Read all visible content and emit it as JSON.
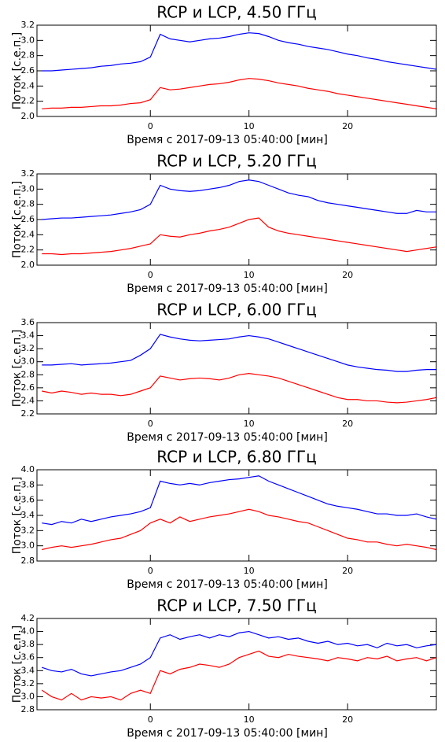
{
  "chart_data": [
    {
      "type": "line",
      "title": "RCP и LCP, 4.50 ГГц",
      "xlabel": "Время с 2017-09-13 05:40:00 [мин]",
      "ylabel": "Поток [с.е.п.]",
      "x": [
        -11,
        -10,
        -9,
        -8,
        -7,
        -6,
        -5,
        -4,
        -3,
        -2,
        -1,
        0,
        1,
        2,
        3,
        4,
        5,
        6,
        7,
        8,
        9,
        10,
        11,
        12,
        13,
        14,
        15,
        16,
        17,
        18,
        19,
        20,
        21,
        22,
        23,
        24,
        25,
        26,
        27,
        28,
        29
      ],
      "xlim": [
        -11.5,
        29
      ],
      "xticks": [
        0,
        10,
        20
      ],
      "ylim": [
        2.0,
        3.2
      ],
      "yticks": [
        {
          "value": 2.0,
          "label": "2.0"
        },
        2.2,
        2.4,
        2.6,
        2.8,
        {
          "value": 3.0,
          "label": "3.0"
        },
        3.2
      ],
      "series": [
        {
          "color": "#0000ff",
          "values": [
            2.6,
            2.6,
            2.61,
            2.62,
            2.63,
            2.64,
            2.66,
            2.67,
            2.69,
            2.7,
            2.72,
            2.78,
            3.08,
            3.02,
            3.0,
            2.98,
            3.0,
            3.02,
            3.03,
            3.05,
            3.08,
            3.1,
            3.09,
            3.05,
            3.0,
            2.97,
            2.95,
            2.92,
            2.9,
            2.88,
            2.85,
            2.82,
            2.8,
            2.77,
            2.75,
            2.72,
            2.7,
            2.68,
            2.66,
            2.64,
            2.62
          ]
        },
        {
          "color": "#ff0000",
          "values": [
            2.1,
            2.11,
            2.11,
            2.12,
            2.12,
            2.13,
            2.14,
            2.14,
            2.15,
            2.17,
            2.18,
            2.22,
            2.38,
            2.35,
            2.36,
            2.38,
            2.4,
            2.42,
            2.43,
            2.45,
            2.48,
            2.5,
            2.49,
            2.47,
            2.44,
            2.42,
            2.4,
            2.37,
            2.35,
            2.33,
            2.3,
            2.28,
            2.26,
            2.24,
            2.22,
            2.2,
            2.18,
            2.16,
            2.14,
            2.12,
            2.1
          ]
        }
      ]
    },
    {
      "type": "line",
      "title": "RCP и LCP, 5.20 ГГц",
      "xlabel": "Время с 2017-09-13 05:40:00 [мин]",
      "ylabel": "Поток [с.е.п.]",
      "x": [
        -11,
        -10,
        -9,
        -8,
        -7,
        -6,
        -5,
        -4,
        -3,
        -2,
        -1,
        0,
        1,
        2,
        3,
        4,
        5,
        6,
        7,
        8,
        9,
        10,
        11,
        12,
        13,
        14,
        15,
        16,
        17,
        18,
        19,
        20,
        21,
        22,
        23,
        24,
        25,
        26,
        27,
        28,
        29
      ],
      "xlim": [
        -11.5,
        29
      ],
      "xticks": [
        0,
        10,
        20
      ],
      "ylim": [
        2.0,
        3.2
      ],
      "yticks": [
        {
          "value": 2.0,
          "label": "2.0"
        },
        2.2,
        2.4,
        2.6,
        2.8,
        {
          "value": 3.0,
          "label": "3.0"
        },
        3.2
      ],
      "series": [
        {
          "color": "#0000ff",
          "values": [
            2.6,
            2.61,
            2.62,
            2.62,
            2.63,
            2.64,
            2.65,
            2.66,
            2.68,
            2.7,
            2.73,
            2.8,
            3.05,
            3.0,
            2.98,
            2.97,
            2.98,
            3.0,
            3.02,
            3.05,
            3.1,
            3.12,
            3.1,
            3.05,
            3.0,
            2.95,
            2.92,
            2.9,
            2.85,
            2.82,
            2.8,
            2.78,
            2.76,
            2.74,
            2.72,
            2.7,
            2.68,
            2.68,
            2.72,
            2.7,
            2.7
          ]
        },
        {
          "color": "#ff0000",
          "values": [
            2.15,
            2.15,
            2.14,
            2.15,
            2.15,
            2.16,
            2.17,
            2.18,
            2.2,
            2.22,
            2.25,
            2.28,
            2.4,
            2.38,
            2.37,
            2.4,
            2.42,
            2.45,
            2.47,
            2.5,
            2.55,
            2.6,
            2.62,
            2.5,
            2.45,
            2.42,
            2.4,
            2.38,
            2.36,
            2.34,
            2.32,
            2.3,
            2.28,
            2.26,
            2.24,
            2.22,
            2.2,
            2.18,
            2.2,
            2.22,
            2.24
          ]
        }
      ]
    },
    {
      "type": "line",
      "title": "RCP и LCP, 6.00 ГГц",
      "xlabel": "Время с 2017-09-13 05:40:00 [мин]",
      "ylabel": "Поток [с.е.п.]",
      "x": [
        -11,
        -10,
        -9,
        -8,
        -7,
        -6,
        -5,
        -4,
        -3,
        -2,
        -1,
        0,
        1,
        2,
        3,
        4,
        5,
        6,
        7,
        8,
        9,
        10,
        11,
        12,
        13,
        14,
        15,
        16,
        17,
        18,
        19,
        20,
        21,
        22,
        23,
        24,
        25,
        26,
        27,
        28,
        29
      ],
      "xlim": [
        -11.5,
        29
      ],
      "xticks": [
        0,
        10,
        20
      ],
      "ylim": [
        2.2,
        3.6
      ],
      "yticks": [
        2.2,
        2.4,
        2.6,
        2.8,
        {
          "value": 3.0,
          "label": "3.0"
        },
        3.2,
        3.4,
        3.6
      ],
      "series": [
        {
          "color": "#0000ff",
          "values": [
            2.95,
            2.95,
            2.96,
            2.97,
            2.95,
            2.96,
            2.97,
            2.98,
            3.0,
            3.02,
            3.1,
            3.2,
            3.42,
            3.38,
            3.35,
            3.33,
            3.32,
            3.33,
            3.34,
            3.35,
            3.38,
            3.4,
            3.38,
            3.35,
            3.3,
            3.25,
            3.2,
            3.15,
            3.1,
            3.05,
            3.0,
            2.95,
            2.92,
            2.9,
            2.88,
            2.87,
            2.85,
            2.85,
            2.87,
            2.88,
            2.88
          ]
        },
        {
          "color": "#ff0000",
          "values": [
            2.55,
            2.52,
            2.55,
            2.53,
            2.5,
            2.52,
            2.5,
            2.5,
            2.48,
            2.5,
            2.55,
            2.6,
            2.78,
            2.75,
            2.72,
            2.74,
            2.75,
            2.74,
            2.72,
            2.75,
            2.8,
            2.82,
            2.8,
            2.78,
            2.75,
            2.7,
            2.65,
            2.6,
            2.55,
            2.5,
            2.45,
            2.42,
            2.42,
            2.4,
            2.4,
            2.38,
            2.37,
            2.38,
            2.4,
            2.42,
            2.45
          ]
        }
      ]
    },
    {
      "type": "line",
      "title": "RCP и LCP, 6.80 ГГц",
      "xlabel": "Время с 2017-09-13 05:40:00 [мин]",
      "ylabel": "Поток [с.е.п.]",
      "x": [
        -11,
        -10,
        -9,
        -8,
        -7,
        -6,
        -5,
        -4,
        -3,
        -2,
        -1,
        0,
        1,
        2,
        3,
        4,
        5,
        6,
        7,
        8,
        9,
        10,
        11,
        12,
        13,
        14,
        15,
        16,
        17,
        18,
        19,
        20,
        21,
        22,
        23,
        24,
        25,
        26,
        27,
        28,
        29
      ],
      "xlim": [
        -11.5,
        29
      ],
      "xticks": [
        0,
        10,
        20
      ],
      "ylim": [
        2.8,
        4.0
      ],
      "yticks": [
        2.8,
        {
          "value": 3.0,
          "label": "3.0"
        },
        3.2,
        3.4,
        3.6,
        3.8,
        {
          "value": 4.0,
          "label": "4.0"
        }
      ],
      "series": [
        {
          "color": "#0000ff",
          "values": [
            3.3,
            3.28,
            3.32,
            3.3,
            3.35,
            3.32,
            3.35,
            3.38,
            3.4,
            3.42,
            3.45,
            3.5,
            3.85,
            3.82,
            3.8,
            3.82,
            3.8,
            3.83,
            3.85,
            3.87,
            3.88,
            3.9,
            3.92,
            3.85,
            3.8,
            3.75,
            3.7,
            3.65,
            3.6,
            3.55,
            3.52,
            3.5,
            3.48,
            3.45,
            3.42,
            3.42,
            3.4,
            3.4,
            3.42,
            3.38,
            3.35
          ]
        },
        {
          "color": "#ff0000",
          "values": [
            2.95,
            2.98,
            3.0,
            2.98,
            3.0,
            3.02,
            3.05,
            3.08,
            3.1,
            3.15,
            3.2,
            3.3,
            3.35,
            3.3,
            3.38,
            3.32,
            3.35,
            3.38,
            3.4,
            3.42,
            3.45,
            3.48,
            3.45,
            3.4,
            3.38,
            3.35,
            3.32,
            3.3,
            3.25,
            3.2,
            3.15,
            3.1,
            3.08,
            3.05,
            3.05,
            3.02,
            3.0,
            3.02,
            3.0,
            2.98,
            2.95
          ]
        }
      ]
    },
    {
      "type": "line",
      "title": "RCP и LCP, 7.50 ГГц",
      "xlabel": "Время с 2017-09-13 05:40:00 [мин]",
      "ylabel": "Поток [с.е.п.]",
      "x": [
        -11,
        -10,
        -9,
        -8,
        -7,
        -6,
        -5,
        -4,
        -3,
        -2,
        -1,
        0,
        1,
        2,
        3,
        4,
        5,
        6,
        7,
        8,
        9,
        10,
        11,
        12,
        13,
        14,
        15,
        16,
        17,
        18,
        19,
        20,
        21,
        22,
        23,
        24,
        25,
        26,
        27,
        28,
        29
      ],
      "xlim": [
        -11.5,
        29
      ],
      "xticks": [
        0,
        10,
        20
      ],
      "ylim": [
        2.8,
        4.2
      ],
      "yticks": [
        2.8,
        {
          "value": 3.0,
          "label": "3.0"
        },
        3.2,
        3.4,
        3.6,
        3.8,
        {
          "value": 4.0,
          "label": "4.0"
        },
        4.2
      ],
      "series": [
        {
          "color": "#0000ff",
          "values": [
            3.45,
            3.4,
            3.38,
            3.42,
            3.35,
            3.32,
            3.35,
            3.38,
            3.4,
            3.45,
            3.5,
            3.6,
            3.9,
            3.95,
            3.88,
            3.92,
            3.95,
            3.9,
            3.95,
            3.92,
            3.98,
            4.0,
            3.95,
            3.9,
            3.92,
            3.88,
            3.9,
            3.85,
            3.82,
            3.85,
            3.8,
            3.82,
            3.78,
            3.8,
            3.75,
            3.82,
            3.78,
            3.8,
            3.75,
            3.78,
            3.8
          ]
        },
        {
          "color": "#ff0000",
          "values": [
            3.1,
            3.0,
            2.95,
            3.05,
            2.95,
            3.0,
            2.98,
            3.0,
            2.95,
            3.05,
            3.1,
            3.05,
            3.4,
            3.35,
            3.42,
            3.45,
            3.5,
            3.48,
            3.45,
            3.5,
            3.6,
            3.65,
            3.7,
            3.62,
            3.6,
            3.65,
            3.62,
            3.6,
            3.58,
            3.55,
            3.6,
            3.58,
            3.55,
            3.6,
            3.58,
            3.62,
            3.55,
            3.58,
            3.6,
            3.55,
            3.6
          ]
        }
      ]
    }
  ]
}
